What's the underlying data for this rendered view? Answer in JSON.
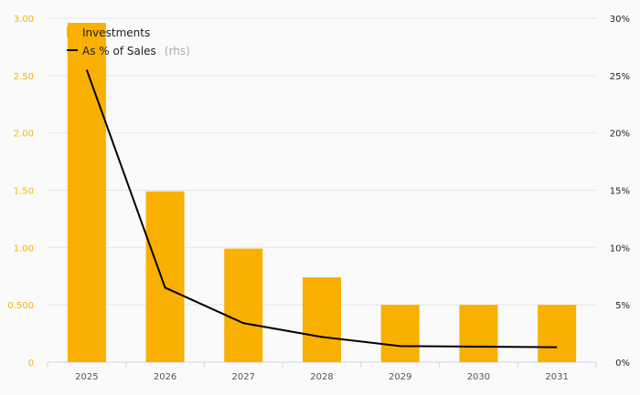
{
  "chart_data": {
    "type": "bar",
    "categories": [
      "2025",
      "2026",
      "2027",
      "2028",
      "2029",
      "2030",
      "2031"
    ],
    "series": [
      {
        "name": "Investments",
        "type": "bar",
        "axis": "left",
        "color": "#f9b000",
        "values": [
          2.96,
          1.49,
          0.99,
          0.74,
          0.5,
          0.5,
          0.5
        ]
      },
      {
        "name": "As % of Sales",
        "type": "line",
        "axis": "right",
        "color": "#000000",
        "values": [
          25.5,
          6.5,
          3.4,
          2.2,
          1.4,
          1.35,
          1.3
        ]
      }
    ],
    "y_left": {
      "ylim": [
        0,
        3.0
      ],
      "ticks": [
        0,
        0.5,
        1.0,
        1.5,
        2.0,
        2.5,
        3.0
      ],
      "tick_labels": [
        "0",
        "0.500",
        "1.00",
        "1.50",
        "2.00",
        "2.50",
        "3.00"
      ]
    },
    "y_right": {
      "ylim": [
        0,
        30
      ],
      "ticks": [
        0,
        5,
        10,
        15,
        20,
        25,
        30
      ],
      "tick_labels": [
        "0%",
        "5%",
        "10%",
        "15%",
        "20%",
        "25%",
        "30%"
      ]
    },
    "legend": {
      "position": "top-left",
      "items": [
        {
          "label": "Investments",
          "suffix": ""
        },
        {
          "label": "As % of Sales",
          "suffix": "(rhs)"
        }
      ]
    },
    "grid": true
  }
}
